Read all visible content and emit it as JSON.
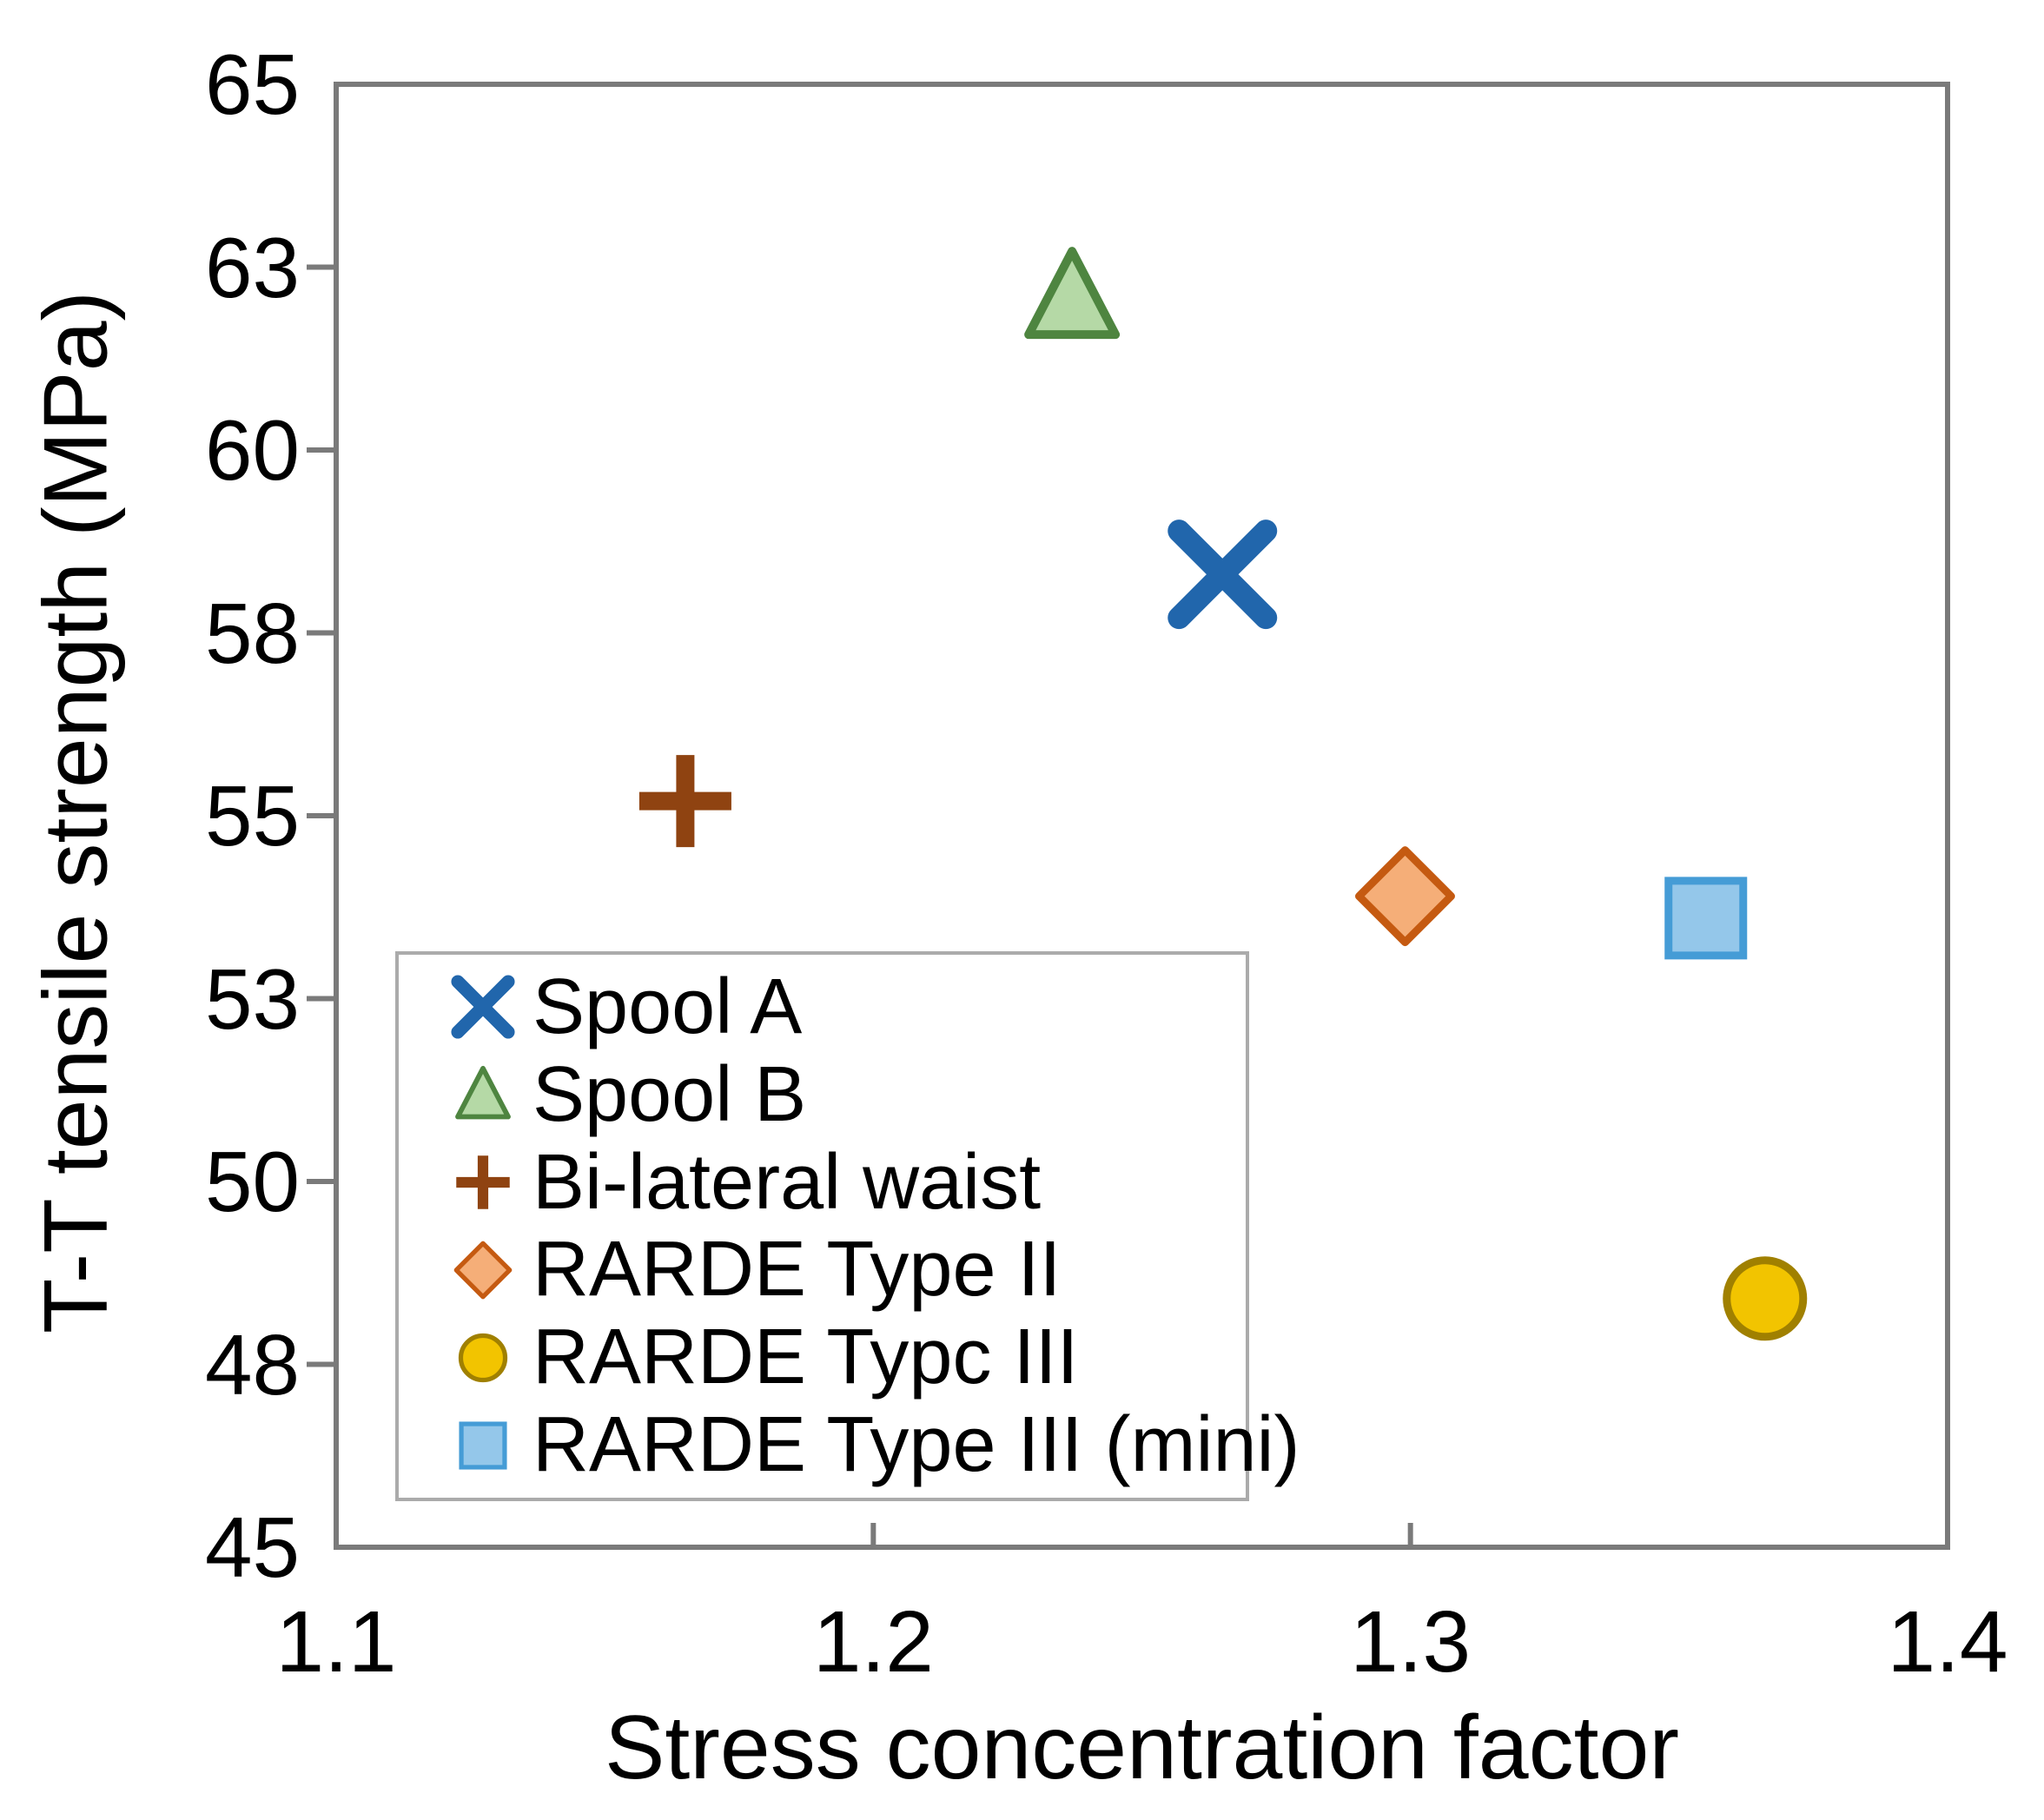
{
  "chart_data": {
    "type": "scatter",
    "title": "",
    "xlabel": "Stress concentration factor",
    "ylabel": "T-T tensile strength (MPa)",
    "xlim": [
      1.1,
      1.4
    ],
    "ylim": [
      45,
      65
    ],
    "grid": false,
    "legend_position": "inside-bottom-left",
    "x_ticks": [
      {
        "label": "1.1",
        "value": 1.1
      },
      {
        "label": "1.2",
        "value": 1.2
      },
      {
        "label": "1.3",
        "value": 1.3
      },
      {
        "label": "1.4",
        "value": 1.4
      }
    ],
    "y_ticks": [
      {
        "label": "65",
        "value": 65
      },
      {
        "label": "63",
        "value": 62.5
      },
      {
        "label": "60",
        "value": 60
      },
      {
        "label": "58",
        "value": 57.5
      },
      {
        "label": "55",
        "value": 55
      },
      {
        "label": "53",
        "value": 52.5
      },
      {
        "label": "50",
        "value": 50
      },
      {
        "label": "48",
        "value": 47.5
      },
      {
        "label": "45",
        "value": 45
      }
    ],
    "series": [
      {
        "name": "Spool A",
        "marker": "x",
        "fill": "#2166AC",
        "stroke": "#2166AC",
        "points": [
          {
            "x": 1.265,
            "y": 58.3
          }
        ]
      },
      {
        "name": "Spool B",
        "marker": "triangle",
        "fill": "#B5D9A6",
        "stroke": "#4E8540",
        "points": [
          {
            "x": 1.237,
            "y": 62.1
          }
        ]
      },
      {
        "name": "Bi-lateral waist",
        "marker": "plus",
        "fill": "#8F4311",
        "stroke": "#8F4311",
        "points": [
          {
            "x": 1.165,
            "y": 55.2
          }
        ]
      },
      {
        "name": "RARDE Type II",
        "marker": "diamond",
        "fill": "#F5AE78",
        "stroke": "#C55A11",
        "points": [
          {
            "x": 1.299,
            "y": 53.9
          }
        ]
      },
      {
        "name": "RARDE Typc III",
        "marker": "circle",
        "fill": "#F2C400",
        "stroke": "#A08000",
        "points": [
          {
            "x": 1.366,
            "y": 48.4
          }
        ]
      },
      {
        "name": "RARDE Type III (mini)",
        "marker": "square",
        "fill": "#94C7EA",
        "stroke": "#459CD6",
        "points": [
          {
            "x": 1.355,
            "y": 53.6
          }
        ]
      }
    ],
    "colors": {
      "axis_line": "#7a7a7a",
      "legend_border": "#ababab",
      "text": "#000000",
      "background": "#ffffff"
    }
  }
}
